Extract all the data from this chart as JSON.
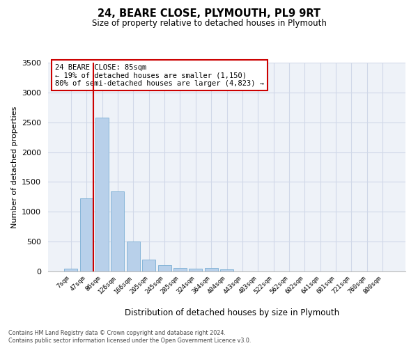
{
  "title1": "24, BEARE CLOSE, PLYMOUTH, PL9 9RT",
  "title2": "Size of property relative to detached houses in Plymouth",
  "xlabel": "Distribution of detached houses by size in Plymouth",
  "ylabel": "Number of detached properties",
  "categories": [
    "7sqm",
    "47sqm",
    "86sqm",
    "126sqm",
    "166sqm",
    "205sqm",
    "245sqm",
    "285sqm",
    "324sqm",
    "364sqm",
    "404sqm",
    "443sqm",
    "483sqm",
    "522sqm",
    "562sqm",
    "602sqm",
    "641sqm",
    "681sqm",
    "721sqm",
    "760sqm",
    "800sqm"
  ],
  "values": [
    50,
    1220,
    2580,
    1340,
    500,
    195,
    110,
    55,
    45,
    55,
    40,
    0,
    0,
    0,
    0,
    0,
    0,
    0,
    0,
    0,
    0
  ],
  "bar_color": "#b8d0ea",
  "bar_edge_color": "#7aaed4",
  "grid_color": "#d0d8e8",
  "background_color": "#eef2f8",
  "vline_color": "#cc0000",
  "annotation_text": "24 BEARE CLOSE: 85sqm\n← 19% of detached houses are smaller (1,150)\n80% of semi-detached houses are larger (4,823) →",
  "annotation_box_edgecolor": "#cc0000",
  "ylim": [
    0,
    3500
  ],
  "yticks": [
    0,
    500,
    1000,
    1500,
    2000,
    2500,
    3000,
    3500
  ],
  "footer1": "Contains HM Land Registry data © Crown copyright and database right 2024.",
  "footer2": "Contains public sector information licensed under the Open Government Licence v3.0."
}
